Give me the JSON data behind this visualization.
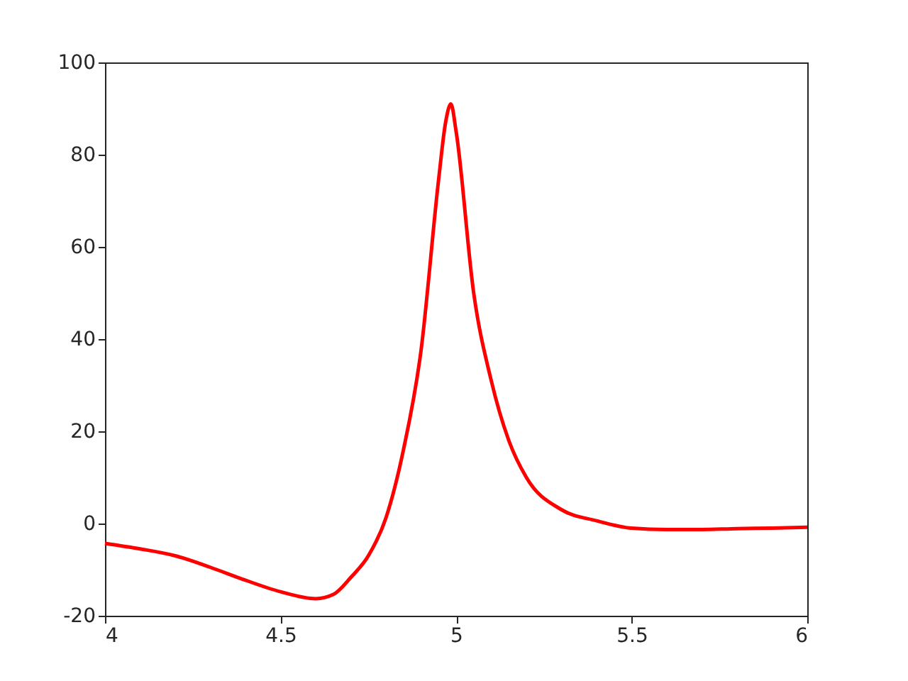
{
  "chart_data": {
    "type": "line",
    "xlim": [
      4,
      6
    ],
    "xticks": [
      4,
      4.5,
      5,
      5.5,
      6
    ],
    "ylim": [
      -20,
      100
    ],
    "yticks": [
      -20,
      0,
      20,
      40,
      60,
      80,
      100
    ],
    "grid": false,
    "legend": false,
    "marker": "none",
    "line_style": "solid",
    "series": [
      {
        "color": "#ff0000",
        "x": [
          4.0,
          4.1,
          4.2,
          4.3,
          4.4,
          4.5,
          4.6,
          4.65,
          4.7,
          4.75,
          4.8,
          4.85,
          4.9,
          4.95,
          4.97,
          4.985,
          5.0,
          5.05,
          5.1,
          5.15,
          5.2,
          5.3,
          5.4,
          5.5,
          5.6,
          5.7,
          5.8,
          5.9,
          6.0
        ],
        "values": [
          -4.3,
          -5.5,
          -7,
          -9.5,
          -12.3,
          -14.8,
          -16.3,
          -15.4,
          -11.7,
          -7,
          1.2,
          16,
          37.5,
          74.5,
          87,
          91,
          85,
          50,
          31,
          18,
          10,
          3,
          0.6,
          -1,
          -1.3,
          -1.3,
          -1.1,
          -1,
          -0.8
        ]
      }
    ]
  }
}
